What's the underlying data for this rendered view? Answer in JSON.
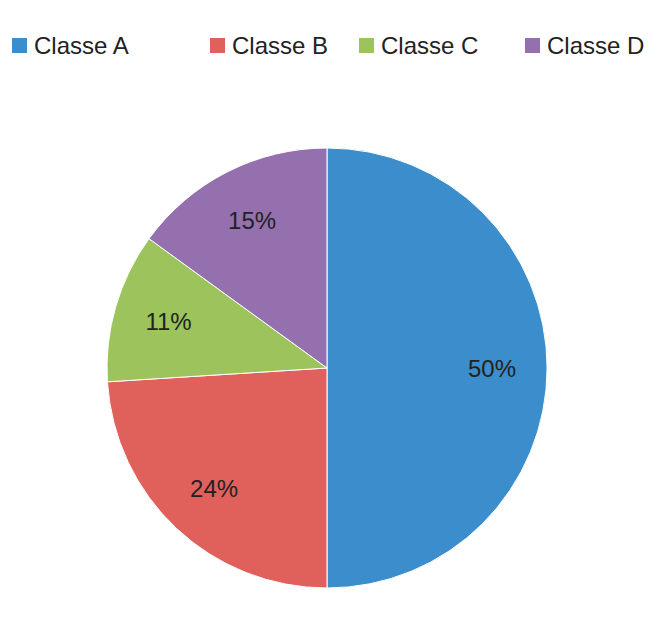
{
  "chart_data": {
    "type": "pie",
    "categories": [
      "Classe A",
      "Classe B",
      "Classe C",
      "Classe D"
    ],
    "values": [
      50,
      24,
      11,
      15
    ],
    "value_labels": [
      "50%",
      "24%",
      "11%",
      "15%"
    ],
    "colors": [
      "#3c8dcb",
      "#e0605c",
      "#9cc35c",
      "#9470ae"
    ],
    "data_labels": true,
    "legend": "top"
  }
}
